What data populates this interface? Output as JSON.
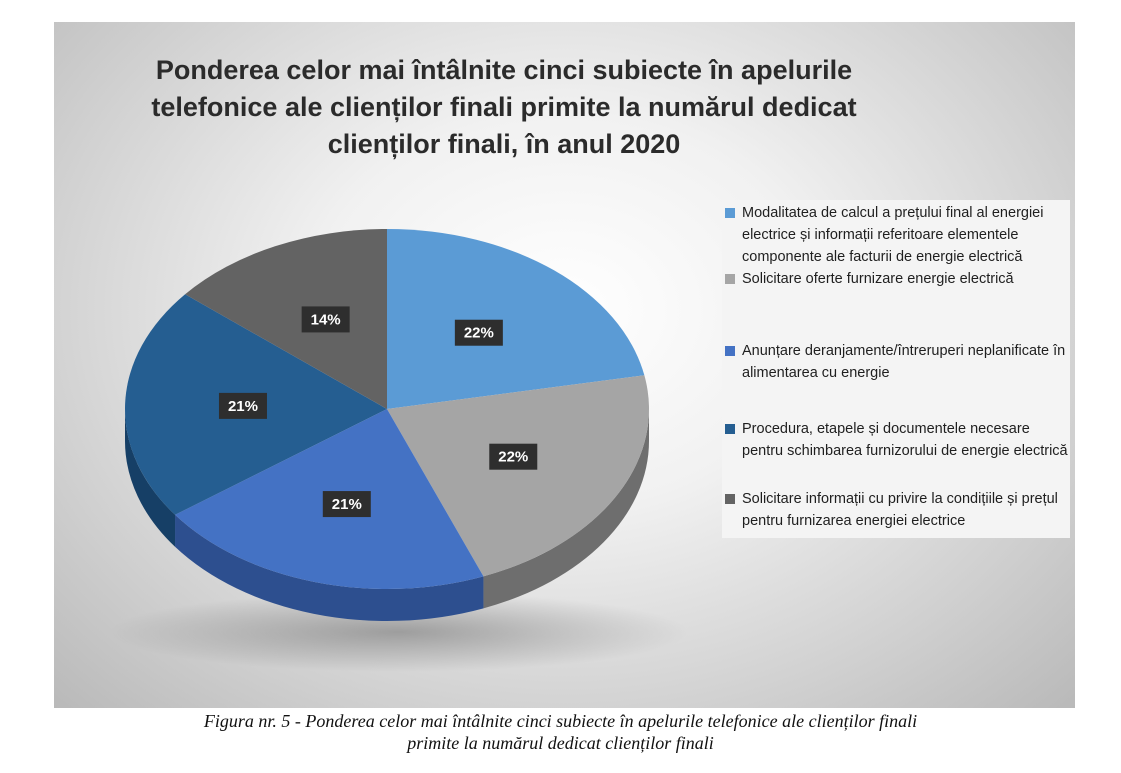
{
  "chart_data": {
    "type": "pie",
    "title": "Ponderea celor mai întâlnite cinci subiecte în apelurile telefonice ale clienților finali primite la numărul dedicat clienților finali, în anul 2020",
    "categories": [
      "Modalitatea de calcul a prețului final al energiei electrice și informații referitoare elementele componente ale facturii de energie electrică",
      "Solicitare oferte furnizare energie electrică",
      "Anunțare deranjamente/întreruperi neplanificate în alimentarea cu energie",
      "Procedura, etapele și documentele necesare pentru schimbarea furnizorului de energie electrică",
      "Solicitare informații cu privire la condițiile și prețul pentru furnizarea energiei electrice"
    ],
    "values": [
      22,
      22,
      21,
      21,
      14
    ],
    "data_labels": [
      "22%",
      "22%",
      "21%",
      "21%",
      "14%"
    ],
    "colors": [
      "#5b9bd5",
      "#a5a5a5",
      "#4472c4",
      "#255e91",
      "#636363"
    ],
    "side_colors": [
      "#3f78ad",
      "#6e6e6e",
      "#2d4f8f",
      "#163f66",
      "#3d3d3d"
    ],
    "legend_position": "right",
    "style": "3d"
  },
  "caption": {
    "line1": "Figura nr. 5 - Ponderea celor mai întâlnite cinci subiecte în apelurile telefonice ale clienților finali",
    "line2": "primite la numărul dedicat clienților finali"
  },
  "title_lines": [
    "Ponderea celor mai întâlnite cinci subiecte în apelurile",
    "telefonice ale clienților finali primite la numărul dedicat",
    "clienților finali, în anul 2020"
  ]
}
